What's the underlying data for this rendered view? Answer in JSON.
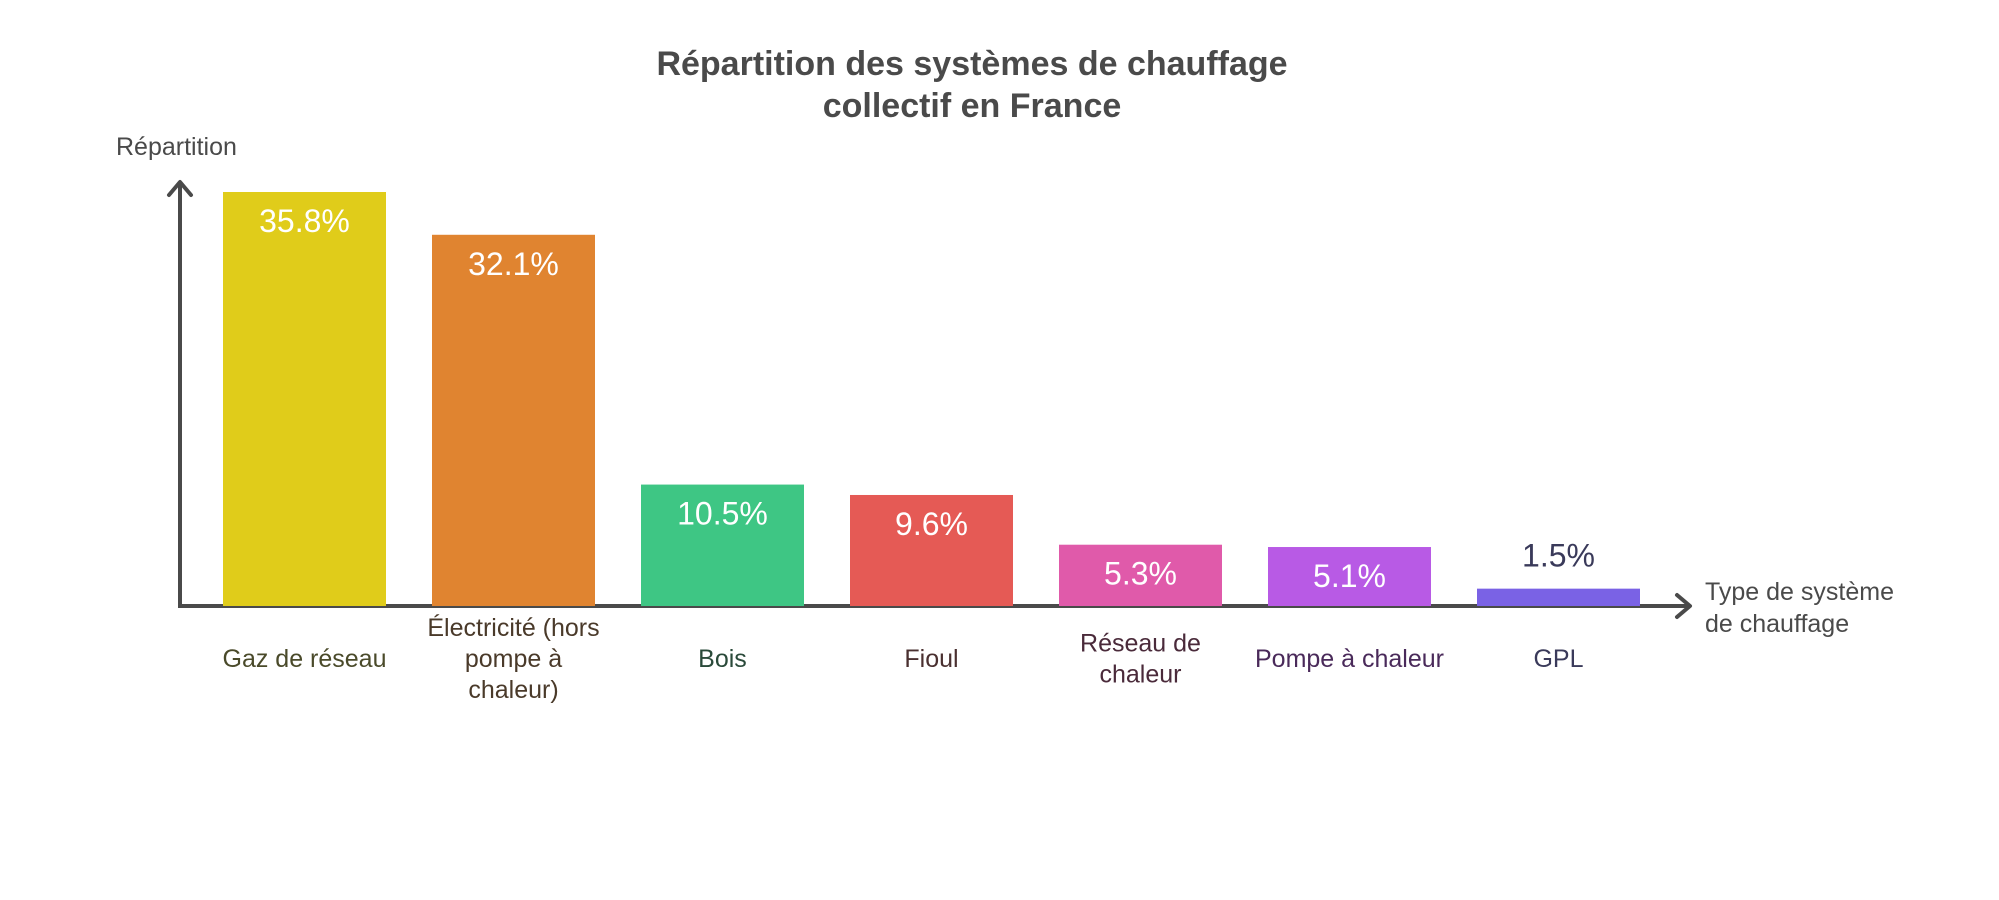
{
  "chart_data": {
    "type": "bar",
    "title_lines": [
      "Répartition des systèmes de chauffage",
      "collectif en France"
    ],
    "ylabel": "Répartition",
    "xlabel_lines": [
      "Type de système",
      "de chauffage"
    ],
    "ylim": [
      0,
      35.8
    ],
    "grid": false,
    "categories": [
      {
        "lines": [
          "Gaz de réseau"
        ]
      },
      {
        "lines": [
          "Électricité (hors",
          "pompe à",
          "chaleur)"
        ]
      },
      {
        "lines": [
          "Bois"
        ]
      },
      {
        "lines": [
          "Fioul"
        ]
      },
      {
        "lines": [
          "Réseau de",
          "chaleur"
        ]
      },
      {
        "lines": [
          "Pompe à chaleur"
        ]
      },
      {
        "lines": [
          "GPL"
        ]
      }
    ],
    "values": [
      35.8,
      32.1,
      10.5,
      9.6,
      5.3,
      5.1,
      1.5
    ],
    "value_labels": [
      "35.8%",
      "32.1%",
      "10.5%",
      "9.6%",
      "5.3%",
      "5.1%",
      "1.5%"
    ],
    "colors": [
      "#e0cc1a",
      "#e08430",
      "#3ec684",
      "#e55a55",
      "#e05aaa",
      "#b85ae5",
      "#7a62e5"
    ],
    "label_colors": [
      "#4a4a2a",
      "#4a3a2a",
      "#2a4a3a",
      "#4a3030",
      "#4a2a3a",
      "#4a2a5a",
      "#3a3a5a"
    ],
    "value_label_inside_color": "#ffffff",
    "value_label_outside_color": "#3a3a5a",
    "axis_color": "#4a4a4a"
  }
}
